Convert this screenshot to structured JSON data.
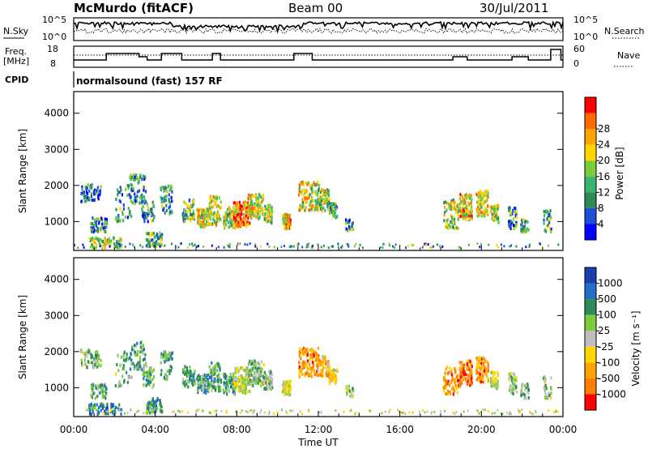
{
  "header": {
    "station": "McMurdo (fitACF)",
    "beam": "Beam 00",
    "date": "30/Jul/2011"
  },
  "noise_panel": {
    "left_label": "N.Sky",
    "right_label": "N.Search",
    "left_ticks": [
      "10^5",
      "10^0"
    ],
    "right_ticks": [
      "10^5",
      "10^0"
    ]
  },
  "freq_panel": {
    "left_label_line1": "Freq.",
    "left_label_line2": "[MHz]",
    "right_label": "Nave",
    "left_ticks": [
      "18",
      "8"
    ],
    "right_ticks": [
      "60",
      "0"
    ]
  },
  "cpid": {
    "label": "CPID",
    "text": "normalsound (fast) 157 RF"
  },
  "colors": {
    "power_scale": [
      "#0000ff",
      "#1a4fd6",
      "#2e8b57",
      "#3cb371",
      "#7ccd3c",
      "#ffd700",
      "#ffa500",
      "#ff6a00",
      "#ff0000"
    ],
    "velocity_scale": [
      "#1a3fb0",
      "#1f6fc8",
      "#2e8b57",
      "#7ccd3c",
      "#bebebe",
      "#ffd700",
      "#ffa500",
      "#ff7f00",
      "#ff0000"
    ]
  },
  "chart_data": [
    {
      "type": "heatmap",
      "name": "power",
      "ylabel": "Slant Range [km]",
      "yticks": [
        "1000",
        "2000",
        "3000",
        "4000"
      ],
      "ylim": [
        200,
        4600
      ],
      "xlim": [
        0,
        24
      ],
      "colorbar_label": "Power [dB]",
      "colorbar_ticks": [
        "4",
        "8",
        "12",
        "16",
        "20",
        "24",
        "28"
      ]
    },
    {
      "type": "heatmap",
      "name": "velocity",
      "ylabel": "Slant Range [km]",
      "yticks": [
        "1000",
        "2000",
        "3000",
        "4000"
      ],
      "ylim": [
        200,
        4600
      ],
      "xlim": [
        0,
        24
      ],
      "xticks": [
        "00:00",
        "04:00",
        "08:00",
        "12:00",
        "16:00",
        "20:00",
        "00:00"
      ],
      "xlabel": "Time UT",
      "colorbar_label": "Velocity [m s⁻¹]",
      "colorbar_ticks": [
        "1000",
        "500",
        "100",
        "25",
        "-25",
        "-100",
        "-500",
        "-1000"
      ]
    }
  ]
}
